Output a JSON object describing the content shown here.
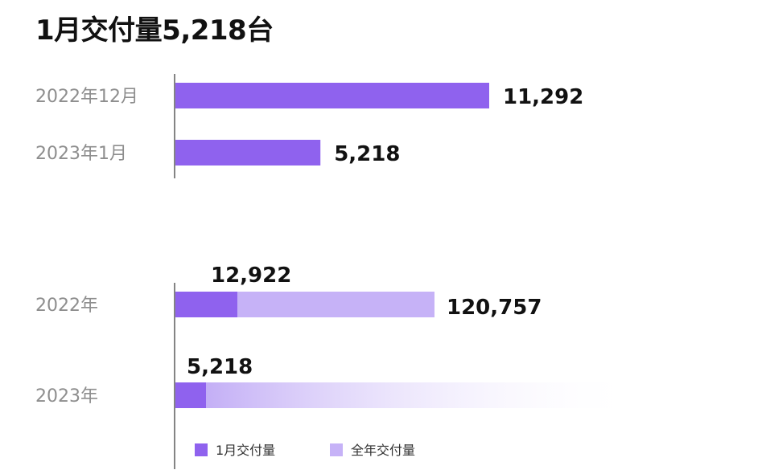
{
  "title": "1月交付量5,218台",
  "colors": {
    "monthly": "#8f62ee",
    "annual": "#c6b2f7",
    "axis": "#333333"
  },
  "chart_data": [
    {
      "type": "bar",
      "orientation": "horizontal",
      "categories": [
        "2022年12月",
        "2023年1月"
      ],
      "series": [
        {
          "values": [
            11292,
            5218
          ],
          "labels": [
            "11,292",
            "5,218"
          ]
        }
      ]
    },
    {
      "type": "bar",
      "orientation": "horizontal",
      "stacked": true,
      "categories": [
        "2022年",
        "2023年"
      ],
      "series": [
        {
          "name": "1月交付量",
          "values": [
            12922,
            5218
          ],
          "labels": [
            "12,922",
            "5,218"
          ]
        },
        {
          "name": "全年交付量",
          "values": [
            120757,
            null
          ],
          "labels": [
            "120,757",
            ""
          ],
          "note_2023": "faded gradient (in progress)"
        }
      ],
      "legend": {
        "position": "bottom-left",
        "items": [
          "1月交付量",
          "全年交付量"
        ]
      }
    }
  ]
}
